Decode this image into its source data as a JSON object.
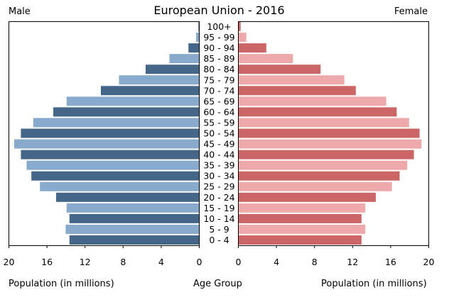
{
  "chart_data": {
    "type": "bar",
    "orientation": "horizontal-pyramid",
    "title": "European Union - 2016",
    "left_label": "Male",
    "right_label": "Female",
    "xlabel_left": "Population (in millions)",
    "xlabel_center": "Age Group",
    "xlabel_right": "Population (in millions)",
    "xlim": [
      0,
      20
    ],
    "xticks": [
      "20",
      "16",
      "12",
      "8",
      "4",
      "0"
    ],
    "xticks_right": [
      "0",
      "4",
      "8",
      "12",
      "16",
      "20"
    ],
    "categories": [
      "100+",
      "95 - 99",
      "90 - 94",
      "85 - 89",
      "80 - 84",
      "75 - 79",
      "70 - 74",
      "65 - 69",
      "60 - 64",
      "55 - 59",
      "50 - 54",
      "45 - 49",
      "40 - 44",
      "35 - 39",
      "30 - 34",
      "25 - 29",
      "20 - 24",
      "15 - 19",
      "10 - 14",
      "5 - 9",
      "0 - 4"
    ],
    "series": [
      {
        "name": "Male",
        "colors": [
          "#446688",
          "#88aacc"
        ],
        "values": [
          0.05,
          0.3,
          1.1,
          3.1,
          5.6,
          8.4,
          10.3,
          13.9,
          15.3,
          17.4,
          18.7,
          19.4,
          18.7,
          18.1,
          17.6,
          16.7,
          15.0,
          13.9,
          13.6,
          14.0,
          13.6
        ]
      },
      {
        "name": "Female",
        "colors": [
          "#cc6666",
          "#eeaaaa"
        ],
        "values": [
          0.2,
          0.8,
          2.9,
          5.7,
          8.6,
          11.1,
          12.3,
          15.5,
          16.6,
          17.9,
          19.0,
          19.2,
          18.4,
          17.7,
          16.9,
          16.1,
          14.4,
          13.3,
          12.9,
          13.3,
          12.9
        ]
      }
    ],
    "grid": false,
    "legend": "none"
  }
}
